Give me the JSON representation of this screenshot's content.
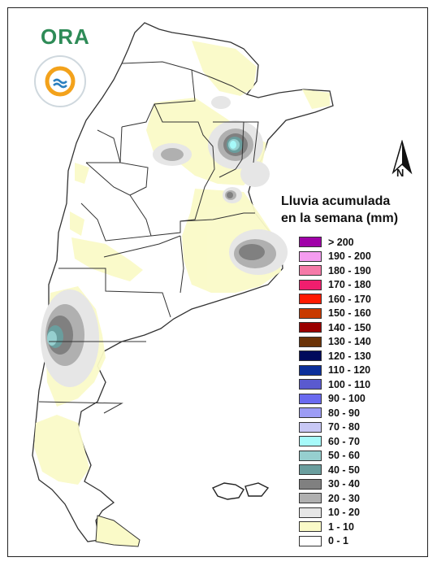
{
  "logo": {
    "text": "ORA"
  },
  "north_arrow": {
    "label": "N"
  },
  "legend": {
    "title_line1": "Lluvia acumulada",
    "title_line2": "en la semana (mm)",
    "items": [
      {
        "label": "> 200",
        "color": "#a000a8"
      },
      {
        "label": "190 - 200",
        "color": "#f59cf0"
      },
      {
        "label": "180 - 190",
        "color": "#f57aa8"
      },
      {
        "label": "170 - 180",
        "color": "#f01e6e"
      },
      {
        "label": "160 - 170",
        "color": "#ff1a00"
      },
      {
        "label": "150 - 160",
        "color": "#c83a00"
      },
      {
        "label": "140 - 150",
        "color": "#9a0000"
      },
      {
        "label": "130 - 140",
        "color": "#6b3308"
      },
      {
        "label": "120 - 130",
        "color": "#000a5c"
      },
      {
        "label": "110 - 120",
        "color": "#0b2f9a"
      },
      {
        "label": "100 - 110",
        "color": "#5a5acf"
      },
      {
        "label": "90 - 100",
        "color": "#6a6af0"
      },
      {
        "label": "80 - 90",
        "color": "#9c9cf5"
      },
      {
        "label": "70 - 80",
        "color": "#c8c8f5"
      },
      {
        "label": "60 - 70",
        "color": "#a6fafa"
      },
      {
        "label": "50 - 60",
        "color": "#96cfcf"
      },
      {
        "label": "40 - 50",
        "color": "#6a9e9e"
      },
      {
        "label": "30 - 40",
        "color": "#808080"
      },
      {
        "label": "20 - 30",
        "color": "#b0b0b0"
      },
      {
        "label": "10 - 20",
        "color": "#e6e6e6"
      },
      {
        "label": "1 - 10",
        "color": "#fafac8"
      },
      {
        "label": "0 - 1",
        "color": "#ffffff"
      }
    ]
  },
  "map": {
    "land_color": "#ffffff",
    "border_color": "#333333",
    "rain_light_color": "#fafac8",
    "rain_10_20_color": "#e6e6e6",
    "rain_20_30_color": "#b0b0b0",
    "rain_30_40_color": "#808080",
    "rain_40_50_color": "#6a9e9e",
    "rain_50_60_color": "#96cfcf",
    "rain_60_70_color": "#a6fafa"
  }
}
